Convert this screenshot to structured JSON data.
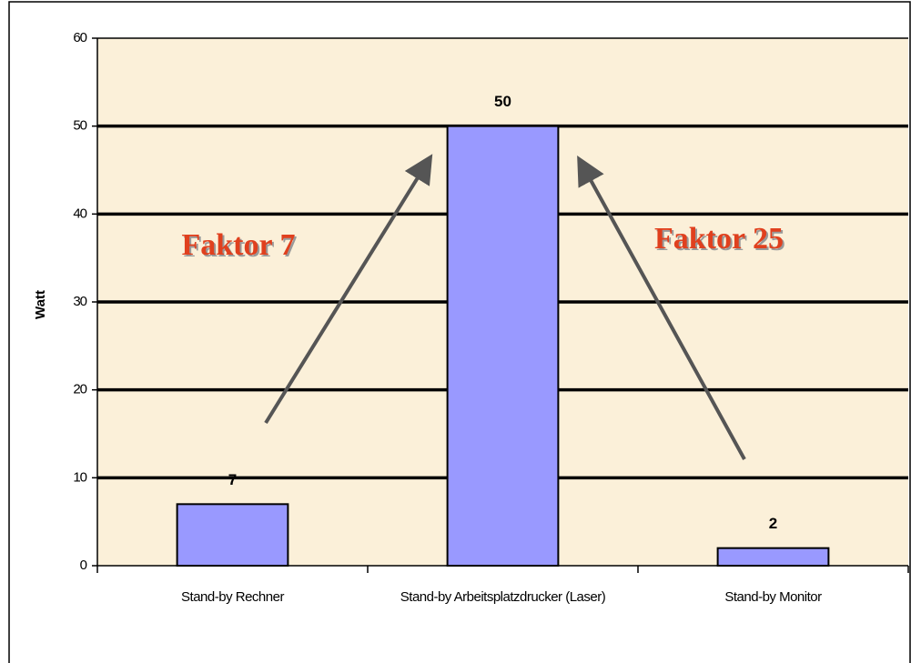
{
  "chart_data": {
    "type": "bar",
    "categories": [
      "Stand-by Rechner",
      "Stand-by Arbeitsplatzdrucker (Laser)",
      "Stand-by Monitor"
    ],
    "values": [
      7,
      50,
      2
    ],
    "color": "#9999ff",
    "ylabel": "Watt",
    "ylim": [
      0,
      60
    ],
    "yticks": [
      0,
      10,
      20,
      30,
      40,
      50,
      60
    ],
    "grid": true,
    "annotations": [
      "Faktor 7",
      "Faktor 25"
    ]
  }
}
